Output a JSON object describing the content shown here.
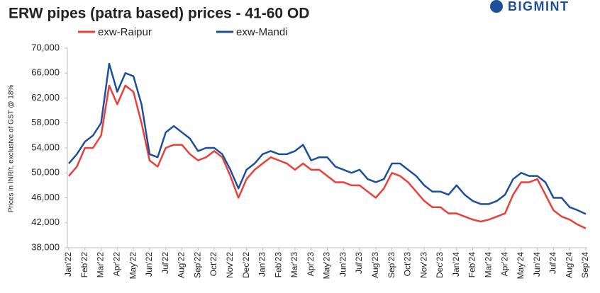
{
  "chart_data": {
    "type": "line",
    "title": "ERW pipes (patra based) prices - 41-60 OD",
    "brand": "BIGMINT",
    "y_label": "Prices in INR/t, exclusive of GST @ 18%",
    "x": [
      0,
      0.5,
      1,
      1.5,
      2,
      2.5,
      3,
      3.5,
      4,
      4.5,
      5,
      5.5,
      6,
      6.5,
      7,
      7.5,
      8,
      8.5,
      9,
      9.5,
      10,
      10.5,
      11,
      11.5,
      12,
      12.5,
      13,
      13.5,
      14,
      14.5,
      15,
      15.5,
      16,
      16.5,
      17,
      17.5,
      18,
      18.5,
      19,
      19.5,
      20,
      20.5,
      21,
      21.5,
      22,
      22.5,
      23,
      23.5,
      24,
      24.5,
      25,
      25.5,
      26,
      26.5,
      27,
      27.5,
      28,
      28.5,
      29,
      29.5,
      30,
      30.5,
      31,
      31.5,
      32
    ],
    "series": [
      {
        "name": "exw-Raipur",
        "color": "#e8403a",
        "values": [
          49500,
          51000,
          54000,
          54000,
          56000,
          64000,
          61000,
          64000,
          63000,
          58000,
          52000,
          51000,
          54000,
          54500,
          54500,
          53000,
          52000,
          52500,
          53500,
          52500,
          49500,
          46000,
          49000,
          50500,
          51500,
          52500,
          52000,
          51500,
          50500,
          51500,
          50500,
          50500,
          49500,
          48500,
          48500,
          48000,
          48000,
          47000,
          46000,
          47500,
          50000,
          49500,
          48500,
          47000,
          45500,
          44500,
          44500,
          43500,
          43500,
          43000,
          42500,
          42200,
          42500,
          43000,
          43500,
          46500,
          48500,
          48500,
          49000,
          46500,
          44000,
          43000,
          42500,
          41700,
          41100
        ]
      },
      {
        "name": "exw-Mandi",
        "color": "#1d4f9c",
        "values": [
          51500,
          53000,
          55000,
          56000,
          58000,
          67500,
          63000,
          66000,
          65500,
          61000,
          53000,
          52500,
          56500,
          57500,
          56500,
          55500,
          53500,
          54000,
          54000,
          53000,
          50500,
          47500,
          50500,
          51500,
          53000,
          53500,
          53000,
          53000,
          53500,
          54500,
          52000,
          52500,
          52500,
          51000,
          50500,
          50000,
          50500,
          49000,
          48500,
          49000,
          51500,
          51500,
          50500,
          49500,
          48000,
          47000,
          47000,
          46500,
          48000,
          46500,
          45500,
          45000,
          45000,
          45500,
          46500,
          49000,
          50000,
          49500,
          49500,
          48500,
          46000,
          46000,
          44500,
          44000,
          43400
        ]
      }
    ],
    "xlim": [
      0,
      32
    ],
    "xticks": [
      {
        "value": 0,
        "label": "Jan'22"
      },
      {
        "value": 1,
        "label": "Feb'22"
      },
      {
        "value": 2,
        "label": "Mar'22"
      },
      {
        "value": 3,
        "label": "Apr'22"
      },
      {
        "value": 4,
        "label": "May'22"
      },
      {
        "value": 5,
        "label": "Jun'22"
      },
      {
        "value": 6,
        "label": "Jul'22"
      },
      {
        "value": 7,
        "label": "Aug'22"
      },
      {
        "value": 8,
        "label": "Sep'22"
      },
      {
        "value": 9,
        "label": "Oct'22"
      },
      {
        "value": 10,
        "label": "Nov'22"
      },
      {
        "value": 11,
        "label": "Dec'22"
      },
      {
        "value": 12,
        "label": "Jan'23"
      },
      {
        "value": 13,
        "label": "Feb'23"
      },
      {
        "value": 14,
        "label": "Mar'23"
      },
      {
        "value": 15,
        "label": "Apr'23"
      },
      {
        "value": 16,
        "label": "May'23"
      },
      {
        "value": 17,
        "label": "Jun'23"
      },
      {
        "value": 18,
        "label": "Jul'23"
      },
      {
        "value": 19,
        "label": "Aug'23"
      },
      {
        "value": 20,
        "label": "Sep'23"
      },
      {
        "value": 21,
        "label": "Oct'23"
      },
      {
        "value": 22,
        "label": "Nov'23"
      },
      {
        "value": 23,
        "label": "Dec'23"
      },
      {
        "value": 24,
        "label": "Jan'24"
      },
      {
        "value": 25,
        "label": "Feb'24"
      },
      {
        "value": 26,
        "label": "Mar'24"
      },
      {
        "value": 27,
        "label": "Apr'24"
      },
      {
        "value": 28,
        "label": "May'24"
      },
      {
        "value": 29,
        "label": "Jun'24"
      },
      {
        "value": 30,
        "label": "Jul'24"
      },
      {
        "value": 31,
        "label": "Aug'24"
      },
      {
        "value": 32,
        "label": "Sep'24"
      }
    ],
    "ylim": [
      38000,
      70000
    ],
    "yticks": [
      {
        "value": 38000,
        "label": "38,000"
      },
      {
        "value": 42000,
        "label": "42,000"
      },
      {
        "value": 46000,
        "label": "46,000"
      },
      {
        "value": 50000,
        "label": "50,000"
      },
      {
        "value": 54000,
        "label": "54,000"
      },
      {
        "value": 58000,
        "label": "58,000"
      },
      {
        "value": 62000,
        "label": "62,000"
      },
      {
        "value": 66000,
        "label": "66,000"
      },
      {
        "value": 70000,
        "label": "70,000"
      }
    ],
    "grid": false
  }
}
